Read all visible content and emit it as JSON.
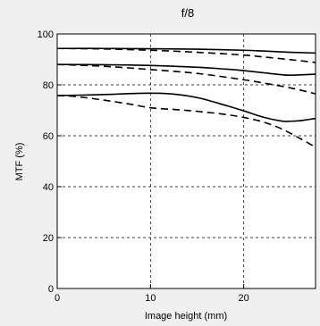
{
  "chart_data": {
    "type": "line",
    "title": "f/8",
    "xlabel": "Image height (mm)",
    "ylabel": "MTF (%)",
    "xlim": [
      0,
      27.7
    ],
    "ylim": [
      0,
      100
    ],
    "xticks": [
      0,
      10,
      20
    ],
    "yticks": [
      0,
      20,
      40,
      60,
      80,
      100
    ],
    "grid": true,
    "series": [
      {
        "style": "solid",
        "x": [
          0,
          5,
          10,
          15,
          20,
          22,
          25,
          27.7
        ],
        "y": [
          94.3,
          94.3,
          94.2,
          94.0,
          93.6,
          93.3,
          92.8,
          92.5
        ]
      },
      {
        "style": "dashed",
        "x": [
          0,
          5,
          10,
          15,
          20,
          22,
          25,
          27.7
        ],
        "y": [
          94.3,
          94.1,
          93.6,
          92.8,
          91.7,
          91.0,
          89.9,
          88.8
        ]
      },
      {
        "style": "solid",
        "x": [
          0,
          5,
          10,
          15,
          18,
          20,
          22,
          24,
          25,
          27.7
        ],
        "y": [
          88.0,
          87.9,
          87.6,
          86.9,
          86.2,
          85.6,
          84.8,
          84.0,
          83.8,
          84.2
        ]
      },
      {
        "style": "dashed",
        "x": [
          0,
          5,
          10,
          15,
          20,
          22,
          25,
          27.7
        ],
        "y": [
          88.0,
          87.3,
          86.0,
          84.5,
          82.0,
          80.8,
          78.8,
          76.5
        ]
      },
      {
        "style": "solid",
        "x": [
          0,
          3,
          6,
          9,
          12,
          15,
          18,
          20,
          22,
          24,
          25,
          26,
          27,
          27.7
        ],
        "y": [
          75.8,
          76.0,
          76.3,
          76.7,
          76.5,
          75.0,
          72.0,
          69.8,
          67.4,
          65.8,
          65.7,
          65.9,
          66.4,
          66.8
        ]
      },
      {
        "style": "dashed",
        "x": [
          0,
          2,
          5,
          8,
          10,
          13,
          15,
          18,
          20,
          22,
          24,
          26,
          27.7
        ],
        "y": [
          75.8,
          75.4,
          74.0,
          72.3,
          71.0,
          70.2,
          69.6,
          68.4,
          67.2,
          65.5,
          62.8,
          59.0,
          55.5
        ]
      }
    ]
  }
}
